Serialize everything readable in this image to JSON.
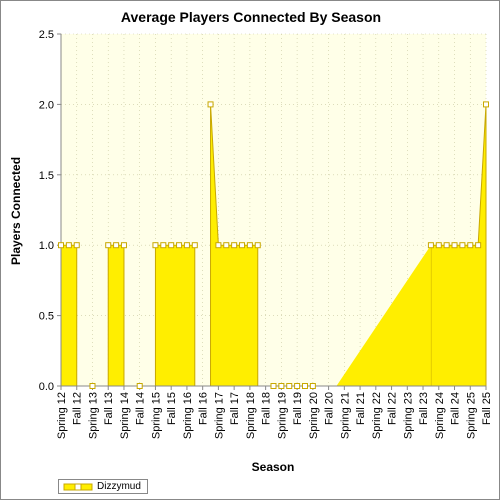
{
  "chart_data": {
    "type": "area",
    "title": "Average Players Connected By Season",
    "xlabel": "Season",
    "ylabel": "Players Connected",
    "ylim": [
      0,
      2.5
    ],
    "yticks": [
      "0.0",
      "0.5",
      "1.0",
      "1.5",
      "2.0",
      "2.5"
    ],
    "categories": [
      "Spring 12",
      "Fall 12",
      "Spring 13",
      "Fall 13",
      "Spring 14",
      "Fall 14",
      "Spring 15",
      "Fall 15",
      "Spring 16",
      "Fall 16",
      "Spring 17",
      "Fall 17",
      "Spring 18",
      "Fall 18",
      "Spring 19",
      "Fall 19",
      "Spring 20",
      "Fall 20",
      "Spring 21",
      "Fall 21",
      "Spring 22",
      "Fall 22",
      "Spring 23",
      "Fall 23",
      "Spring 24",
      "Fall 24",
      "Spring 25",
      "Fall 25"
    ],
    "x": [
      0,
      1,
      2,
      3,
      4,
      5,
      6,
      7,
      8,
      9,
      10,
      11,
      12,
      13,
      14,
      15,
      16,
      17,
      18,
      19,
      20,
      21,
      22,
      23,
      24,
      25,
      26,
      27,
      28,
      29,
      30,
      31,
      32,
      33,
      34,
      35,
      36,
      37,
      38,
      39,
      40,
      41,
      42,
      43,
      44,
      45,
      46,
      47,
      48,
      49,
      50,
      51,
      52,
      53,
      54
    ],
    "series": [
      {
        "name": "Dizzymud",
        "values": [
          1,
          1,
          1,
          null,
          0,
          null,
          1,
          1,
          1,
          null,
          0,
          null,
          1,
          1,
          1,
          1,
          1,
          1,
          null,
          2,
          1,
          1,
          1,
          1,
          1,
          1,
          null,
          0,
          0,
          0,
          0,
          0,
          0,
          null,
          null,
          null,
          null,
          null,
          null,
          null,
          null,
          null,
          null,
          null,
          null,
          null,
          null,
          1,
          1,
          1,
          1,
          1,
          1,
          1,
          2
        ]
      }
    ],
    "grid": true,
    "legend_position": "bottom-left",
    "colors": {
      "plot_bg": "#ffffe8",
      "area_fill": "#ffee00",
      "line": "#c8a800",
      "marker_fill": "#ffffff",
      "grid": "#c8c8a0"
    }
  }
}
